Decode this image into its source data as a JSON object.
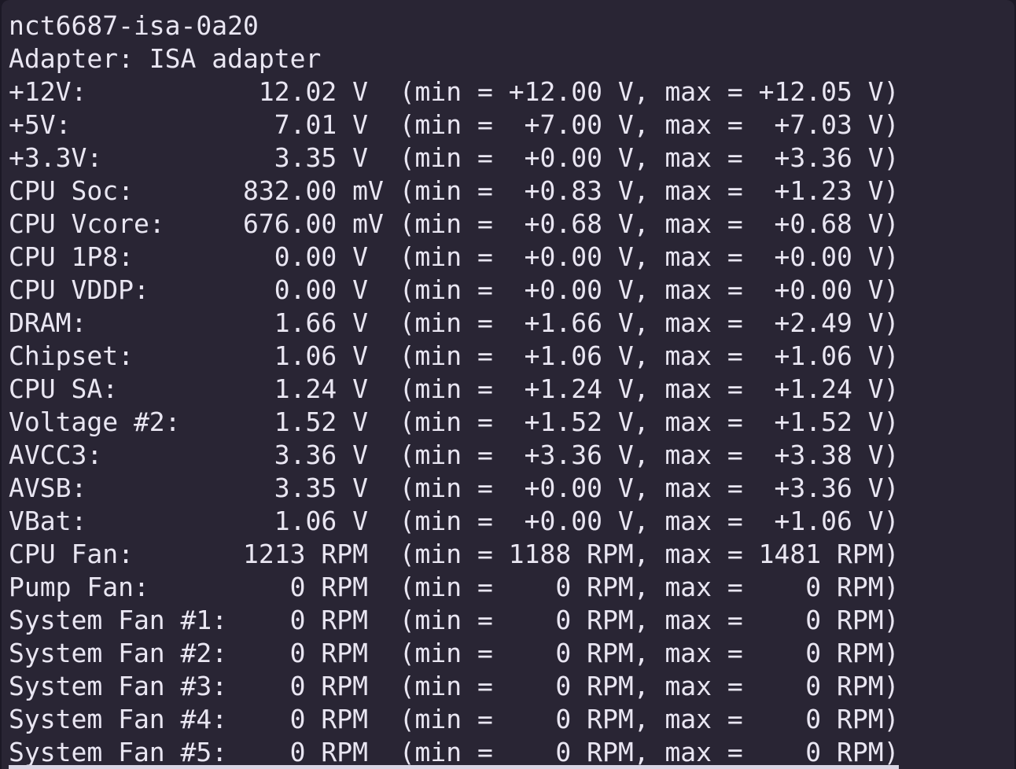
{
  "terminal": {
    "chip": "nct6687-isa-0a20",
    "adapter_line": "Adapter: ISA adapter",
    "rows": [
      {
        "type": "volt",
        "label": "+12V:",
        "value": "12.02",
        "unit": "V",
        "min": "+12.00",
        "max": "+12.05"
      },
      {
        "type": "volt",
        "label": "+5V:",
        "value": "7.01",
        "unit": "V",
        "min": "+7.00",
        "max": "+7.03"
      },
      {
        "type": "volt",
        "label": "+3.3V:",
        "value": "3.35",
        "unit": "V",
        "min": "+0.00",
        "max": "+3.36"
      },
      {
        "type": "volt",
        "label": "CPU Soc:",
        "value": "832.00",
        "unit": "mV",
        "min": "+0.83",
        "max": "+1.23"
      },
      {
        "type": "volt",
        "label": "CPU Vcore:",
        "value": "676.00",
        "unit": "mV",
        "min": "+0.68",
        "max": "+0.68"
      },
      {
        "type": "volt",
        "label": "CPU 1P8:",
        "value": "0.00",
        "unit": "V",
        "min": "+0.00",
        "max": "+0.00"
      },
      {
        "type": "volt",
        "label": "CPU VDDP:",
        "value": "0.00",
        "unit": "V",
        "min": "+0.00",
        "max": "+0.00"
      },
      {
        "type": "volt",
        "label": "DRAM:",
        "value": "1.66",
        "unit": "V",
        "min": "+1.66",
        "max": "+2.49"
      },
      {
        "type": "volt",
        "label": "Chipset:",
        "value": "1.06",
        "unit": "V",
        "min": "+1.06",
        "max": "+1.06"
      },
      {
        "type": "volt",
        "label": "CPU SA:",
        "value": "1.24",
        "unit": "V",
        "min": "+1.24",
        "max": "+1.24"
      },
      {
        "type": "volt",
        "label": "Voltage #2:",
        "value": "1.52",
        "unit": "V",
        "min": "+1.52",
        "max": "+1.52"
      },
      {
        "type": "volt",
        "label": "AVCC3:",
        "value": "3.36",
        "unit": "V",
        "min": "+3.36",
        "max": "+3.38"
      },
      {
        "type": "volt",
        "label": "AVSB:",
        "value": "3.35",
        "unit": "V",
        "min": "+0.00",
        "max": "+3.36"
      },
      {
        "type": "volt",
        "label": "VBat:",
        "value": "1.06",
        "unit": "V",
        "min": "+0.00",
        "max": "+1.06"
      },
      {
        "type": "fan",
        "label": "CPU Fan:",
        "value": "1213",
        "unit": "RPM",
        "min": "1188",
        "max": "1481"
      },
      {
        "type": "fan",
        "label": "Pump Fan:",
        "value": "0",
        "unit": "RPM",
        "min": "0",
        "max": "0"
      },
      {
        "type": "fan",
        "label": "System Fan #1:",
        "value": "0",
        "unit": "RPM",
        "min": "0",
        "max": "0"
      },
      {
        "type": "fan",
        "label": "System Fan #2:",
        "value": "0",
        "unit": "RPM",
        "min": "0",
        "max": "0"
      },
      {
        "type": "fan",
        "label": "System Fan #3:",
        "value": "0",
        "unit": "RPM",
        "min": "0",
        "max": "0"
      },
      {
        "type": "fan",
        "label": "System Fan #4:",
        "value": "0",
        "unit": "RPM",
        "min": "0",
        "max": "0"
      },
      {
        "type": "fan",
        "label": "System Fan #5:",
        "value": "0",
        "unit": "RPM",
        "min": "0",
        "max": "0"
      }
    ],
    "colors": {
      "background": "#292534",
      "frame_edge": "#1c1926",
      "foreground": "#e9e6f2",
      "status_bar": "#d9d6e5"
    }
  }
}
